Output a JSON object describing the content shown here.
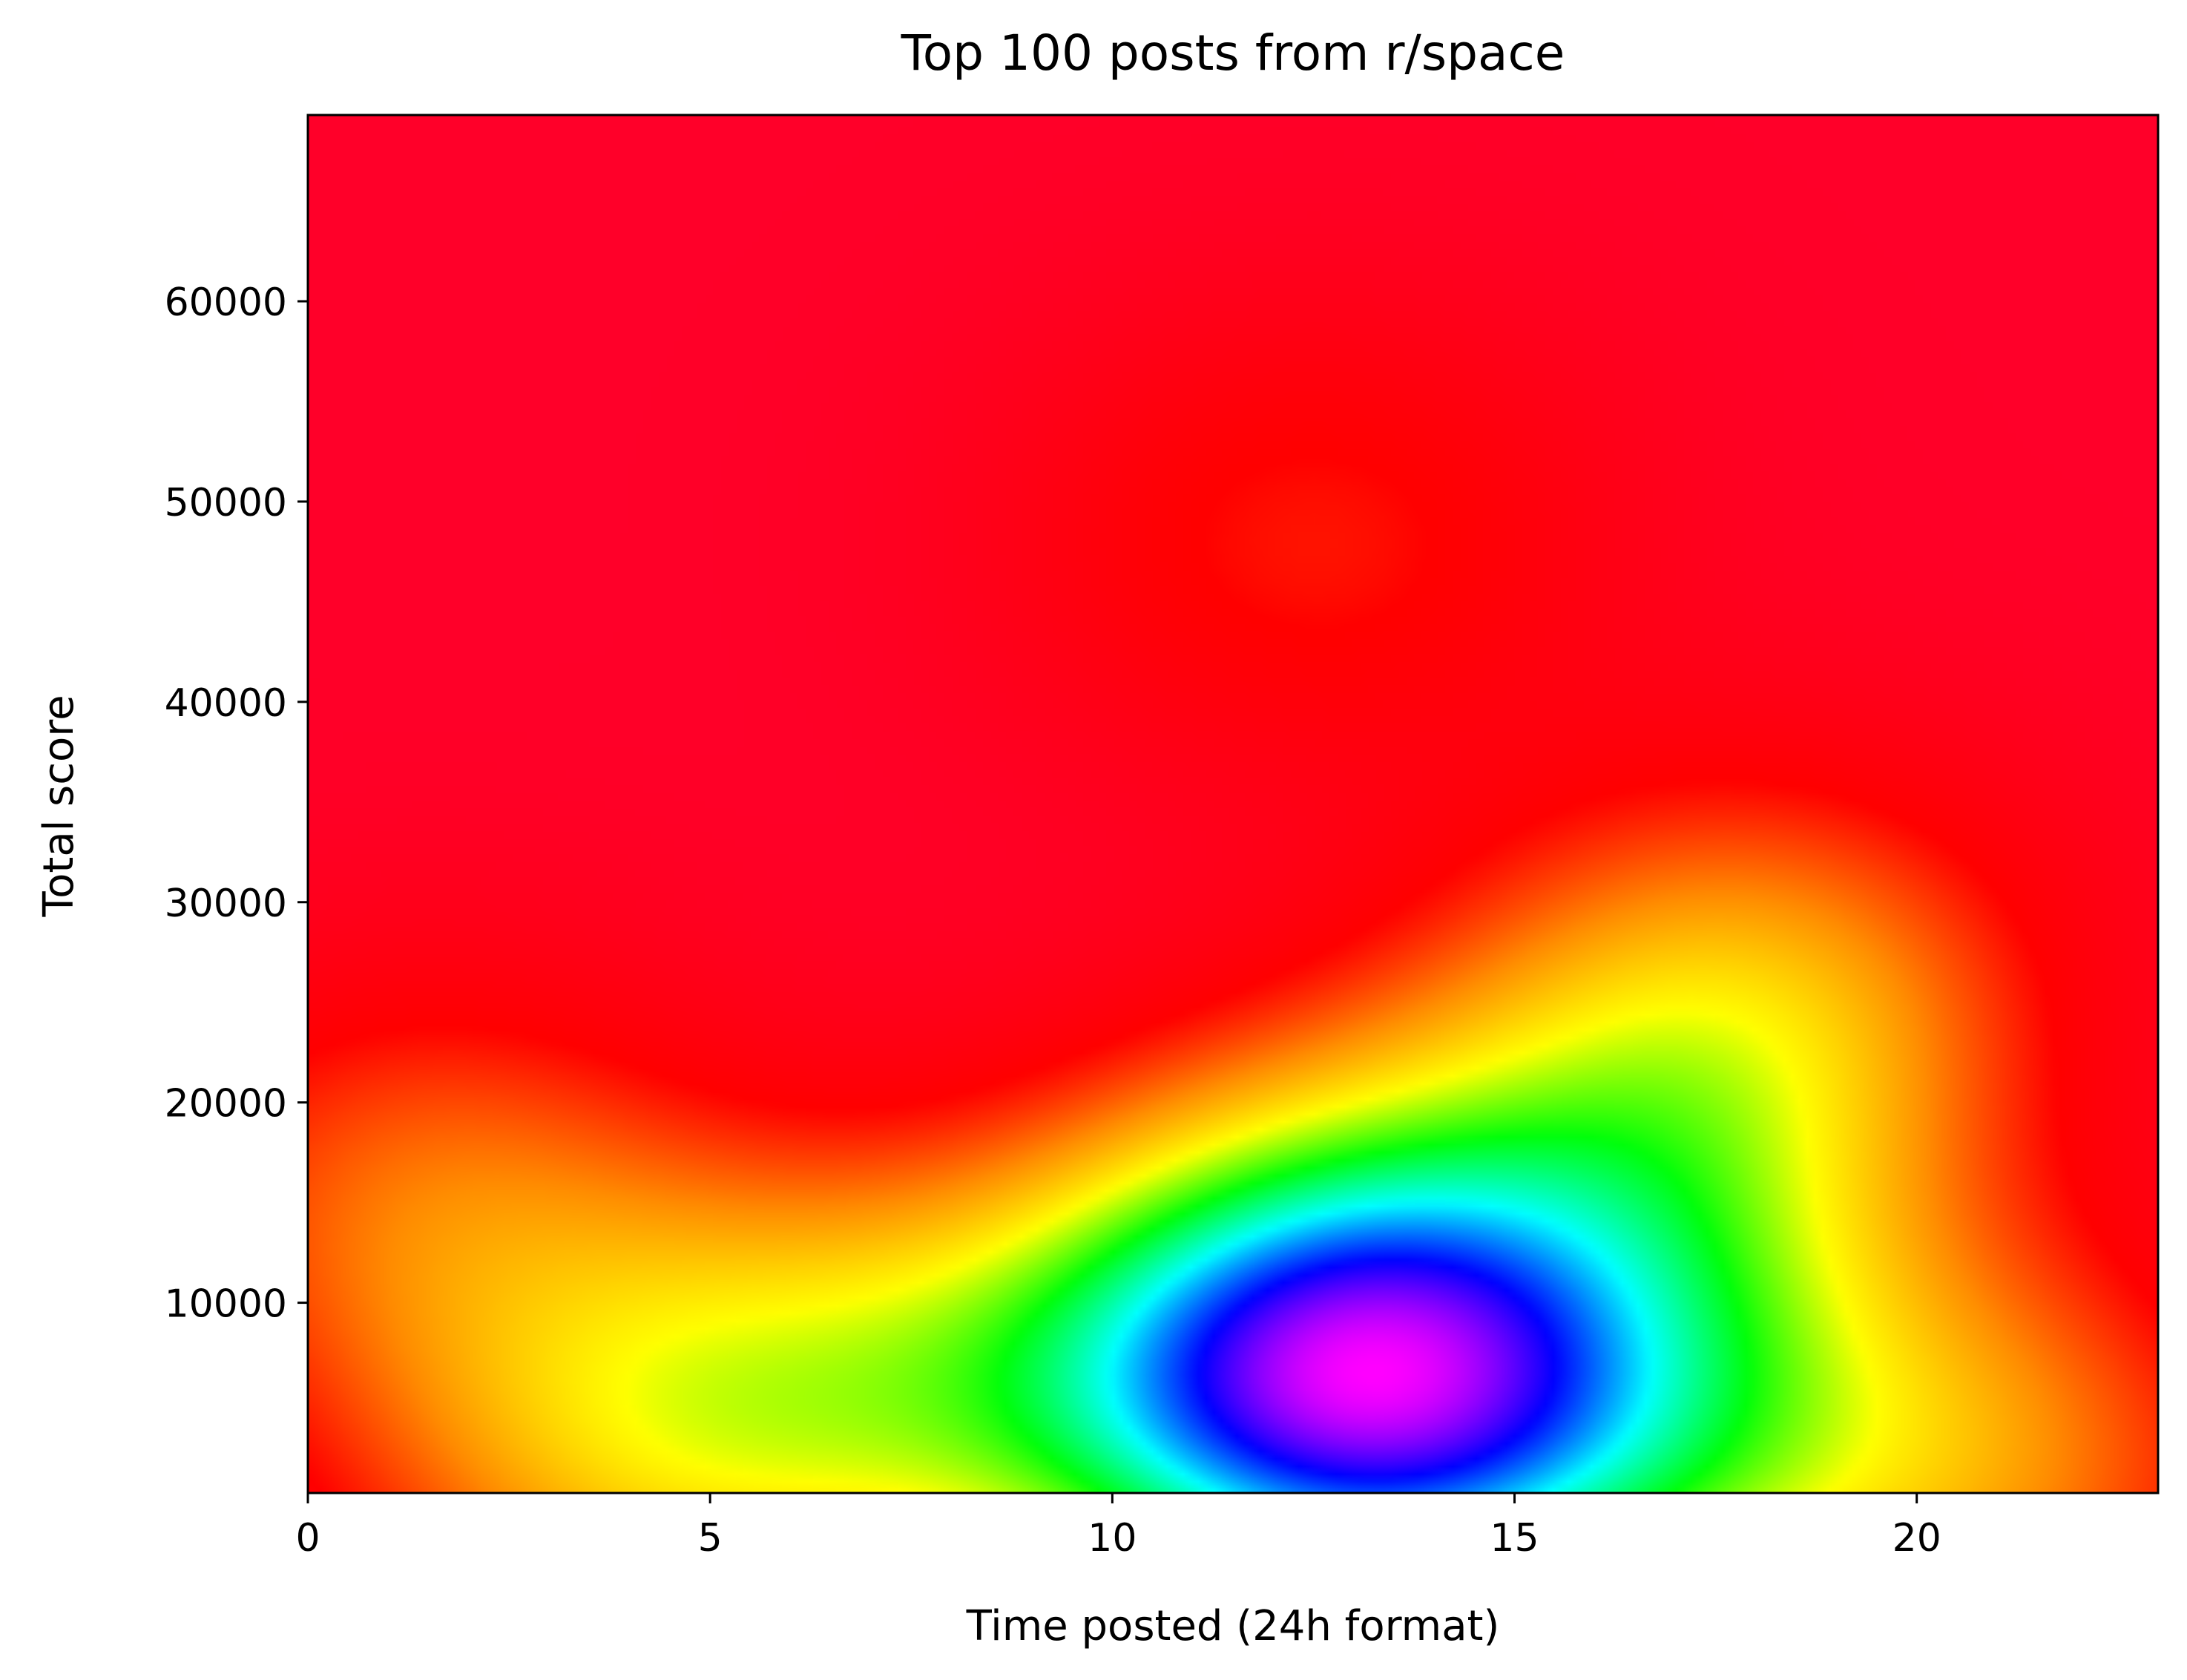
{
  "chart_data": {
    "type": "heatmap",
    "title": "Top 100 posts from r/space",
    "xlabel": "Time posted (24h format)",
    "ylabel": "Total score",
    "xlim": [
      0,
      23
    ],
    "ylim": [
      500,
      69300
    ],
    "x_ticks": [
      0,
      5,
      10,
      15,
      20
    ],
    "y_ticks": [
      10000,
      20000,
      30000,
      40000,
      50000,
      60000
    ],
    "colormap": "gist_rainbow",
    "colormap_stops": [
      "#ff0029",
      "#ff0000",
      "#ff8c00",
      "#ffff00",
      "#00ff0a",
      "#00ffff",
      "#0000ff",
      "#ff00ff"
    ],
    "density_hotspots": [
      {
        "x": 13.2,
        "y": 3800,
        "level": 1.0
      },
      {
        "x": 11.5,
        "y": 6000,
        "level": 0.88
      },
      {
        "x": 16.0,
        "y": 4500,
        "level": 0.84
      },
      {
        "x": 13.0,
        "y": 12000,
        "level": 0.72
      },
      {
        "x": 16.8,
        "y": 18000,
        "level": 0.62
      },
      {
        "x": 7.0,
        "y": 6000,
        "level": 0.6
      },
      {
        "x": 4.0,
        "y": 3000,
        "level": 0.55
      },
      {
        "x": 20.5,
        "y": 2000,
        "level": 0.55
      },
      {
        "x": 18.0,
        "y": 26000,
        "level": 0.48
      },
      {
        "x": 1.5,
        "y": 15000,
        "level": 0.45
      },
      {
        "x": 12.5,
        "y": 48000,
        "level": 0.28
      }
    ],
    "grid": false,
    "legend": "none"
  }
}
